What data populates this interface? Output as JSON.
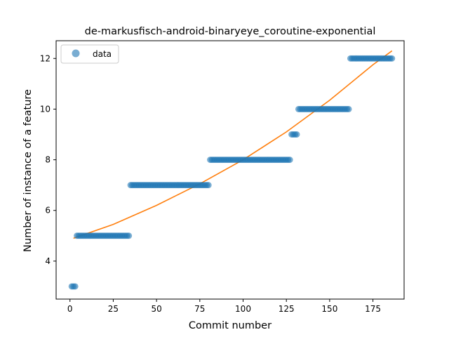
{
  "chart_data": {
    "type": "scatter",
    "title": "de-markusfisch-android-binaryeye_coroutine-exponential",
    "xlabel": "Commit number",
    "ylabel": "Number of instance of a feature",
    "xlim": [
      -8,
      193
    ],
    "ylim": [
      2.5,
      12.7
    ],
    "xticks": [
      0,
      25,
      50,
      75,
      100,
      125,
      150,
      175
    ],
    "yticks": [
      4,
      6,
      8,
      10,
      12
    ],
    "grid": false,
    "legend": {
      "placement": "top-left",
      "entries": [
        "data"
      ]
    },
    "colors": {
      "data": "#1f77b4",
      "fit": "#ff7f0e"
    },
    "series": [
      {
        "name": "data",
        "kind": "scatter",
        "segments": [
          {
            "x_start": 1,
            "x_end": 3,
            "y": 3
          },
          {
            "x_start": 4,
            "x_end": 34,
            "y": 5
          },
          {
            "x_start": 35,
            "x_end": 80,
            "y": 7
          },
          {
            "x_start": 81,
            "x_end": 127,
            "y": 8
          },
          {
            "x_start": 128,
            "x_end": 131,
            "y": 9
          },
          {
            "x_start": 132,
            "x_end": 161,
            "y": 10
          },
          {
            "x_start": 162,
            "x_end": 186,
            "y": 12
          }
        ]
      },
      {
        "kind": "line",
        "x": [
          2,
          25,
          50,
          75,
          100,
          125,
          150,
          175,
          186
        ],
        "y": [
          4.9,
          5.45,
          6.2,
          7.05,
          8.0,
          9.1,
          10.35,
          11.75,
          12.3
        ]
      }
    ]
  }
}
